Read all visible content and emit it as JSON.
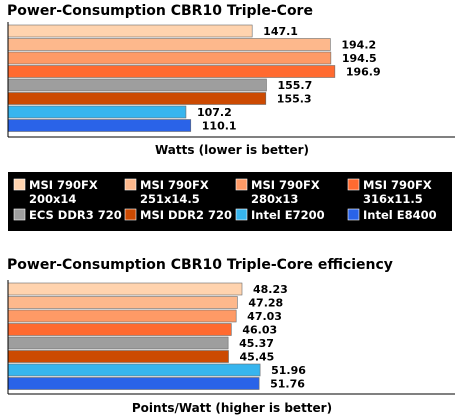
{
  "colors": {
    "legend_bg": "#000000",
    "axis": "#000000"
  },
  "chart_data": [
    {
      "type": "bar",
      "orientation": "horizontal",
      "title": "Power-Consumption CBR10 Triple-Core",
      "xlabel": "Watts (lower is better)",
      "categories": [
        "MSI 790FX 200x14",
        "MSI 790FX 251x14.5",
        "MSI 790FX 280x13",
        "MSI 790FX 316x11.5",
        "ECS DDR3 720",
        "MSI DDR2 720",
        "Intel E7200",
        "Intel E8400"
      ],
      "values": [
        147.1,
        194.2,
        194.5,
        196.9,
        155.7,
        155.3,
        107.2,
        110.1
      ],
      "value_labels": [
        "147.1",
        "194.2",
        "194.5",
        "196.9",
        "155.7",
        "155.3",
        "107.2",
        "110.1"
      ],
      "xlim": [
        0,
        200
      ],
      "grid": false
    },
    {
      "type": "bar",
      "orientation": "horizontal",
      "title": "Power-Consumption CBR10 Triple-Core efficiency",
      "xlabel": "Points/Watt (higher is better)",
      "categories": [
        "MSI 790FX 200x14",
        "MSI 790FX 251x14.5",
        "MSI 790FX 280x13",
        "MSI 790FX 316x11.5",
        "ECS DDR3 720",
        "MSI DDR2 720",
        "Intel E7200",
        "Intel E8400"
      ],
      "values": [
        48.23,
        47.28,
        47.03,
        46.03,
        45.37,
        45.45,
        51.96,
        51.76
      ],
      "value_labels": [
        "48.23",
        "47.28",
        "47.03",
        "46.03",
        "45.37",
        "45.45",
        "51.96",
        "51.76"
      ],
      "xlim": [
        0,
        54
      ],
      "grid": false
    }
  ],
  "legend": {
    "placement": "between-charts",
    "items": [
      {
        "line1": "MSI 790FX",
        "line2": "200x14",
        "color": "#ffd3ae"
      },
      {
        "line1": "MSI 790FX",
        "line2": "251x14.5",
        "color": "#fdb88c"
      },
      {
        "line1": "MSI 790FX",
        "line2": "280x13",
        "color": "#fe9a66"
      },
      {
        "line1": "MSI 790FX",
        "line2": "316x11.5",
        "color": "#ff6a30"
      },
      {
        "line1": "ECS DDR3 720",
        "line2": "",
        "color": "#9e9e9e"
      },
      {
        "line1": "MSI DDR2 720",
        "line2": "",
        "color": "#cc4a02"
      },
      {
        "line1": "Intel E7200",
        "line2": "",
        "color": "#37b5ee"
      },
      {
        "line1": "Intel E8400",
        "line2": "",
        "color": "#2a63e8"
      }
    ]
  }
}
